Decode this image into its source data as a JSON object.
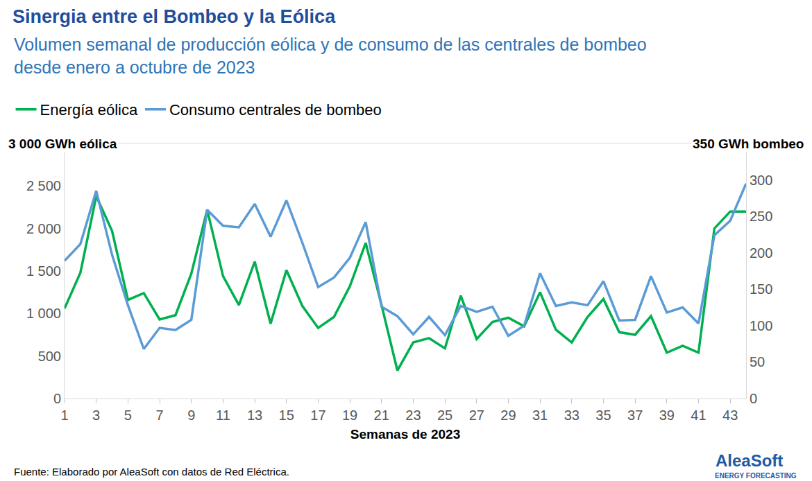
{
  "chart_data": {
    "type": "line",
    "title": "Sinergia entre el Bombeo y la Eólica",
    "subtitle": [
      "Volumen semanal de producción eólica y de consumo de las centrales de bombeo",
      "desde enero a octubre de 2023"
    ],
    "x_label": "Semanas de 2023",
    "y_label": "3 000 GWh eólica",
    "y2_label": "350 GWh bombeo",
    "source": "Fuente: Elaborado por AleaSoft con datos de Red Eléctrica.",
    "logo": "AleaSoft",
    "logo_tagline": "ENERGY FORECASTING",
    "x": [
      1,
      2,
      3,
      4,
      5,
      6,
      7,
      8,
      9,
      10,
      11,
      12,
      13,
      14,
      15,
      16,
      17,
      18,
      19,
      20,
      21,
      22,
      23,
      24,
      25,
      26,
      27,
      28,
      29,
      30,
      31,
      32,
      33,
      34,
      35,
      36,
      37,
      38,
      39,
      40,
      41,
      42,
      43,
      44
    ],
    "xlim": [
      1,
      44
    ],
    "xticks": [
      1,
      3,
      5,
      7,
      9,
      11,
      13,
      15,
      17,
      19,
      21,
      23,
      25,
      27,
      29,
      31,
      33,
      35,
      37,
      39,
      41,
      43
    ],
    "ylim": [
      0,
      3000
    ],
    "yticks": [
      0,
      500,
      {
        "value": 1000,
        "label": "1 000"
      },
      {
        "value": 1500,
        "label": "1 500"
      },
      {
        "value": 2000,
        "label": "2 000"
      },
      {
        "value": 2500,
        "label": "2 500"
      }
    ],
    "y2lim": [
      0,
      350
    ],
    "y2ticks": [
      0,
      50,
      100,
      150,
      200,
      250,
      300
    ],
    "grid": false,
    "legend": "top-left",
    "series": [
      {
        "name": "Energía eólica",
        "color": "#00b050",
        "axis": "y",
        "values": [
          1060,
          1480,
          2380,
          1970,
          1160,
          1240,
          930,
          980,
          1470,
          2220,
          1440,
          1100,
          1610,
          880,
          1510,
          1090,
          830,
          960,
          1320,
          1830,
          1100,
          330,
          660,
          710,
          590,
          1210,
          700,
          900,
          950,
          850,
          1250,
          810,
          660,
          960,
          1170,
          780,
          750,
          970,
          540,
          620,
          540,
          2000,
          2200,
          2200
        ]
      },
      {
        "name": "Consumo centrales de bombeo",
        "color": "#5b9bd5",
        "axis": "y2",
        "values": [
          189,
          212,
          285,
          197,
          128,
          68,
          97,
          94,
          108,
          259,
          237,
          235,
          267,
          222,
          272,
          214,
          153,
          166,
          193,
          242,
          126,
          113,
          88,
          112,
          87,
          127,
          119,
          126,
          86,
          100,
          172,
          127,
          132,
          128,
          161,
          107,
          108,
          168,
          118,
          125,
          103,
          224,
          244,
          295
        ]
      }
    ]
  }
}
